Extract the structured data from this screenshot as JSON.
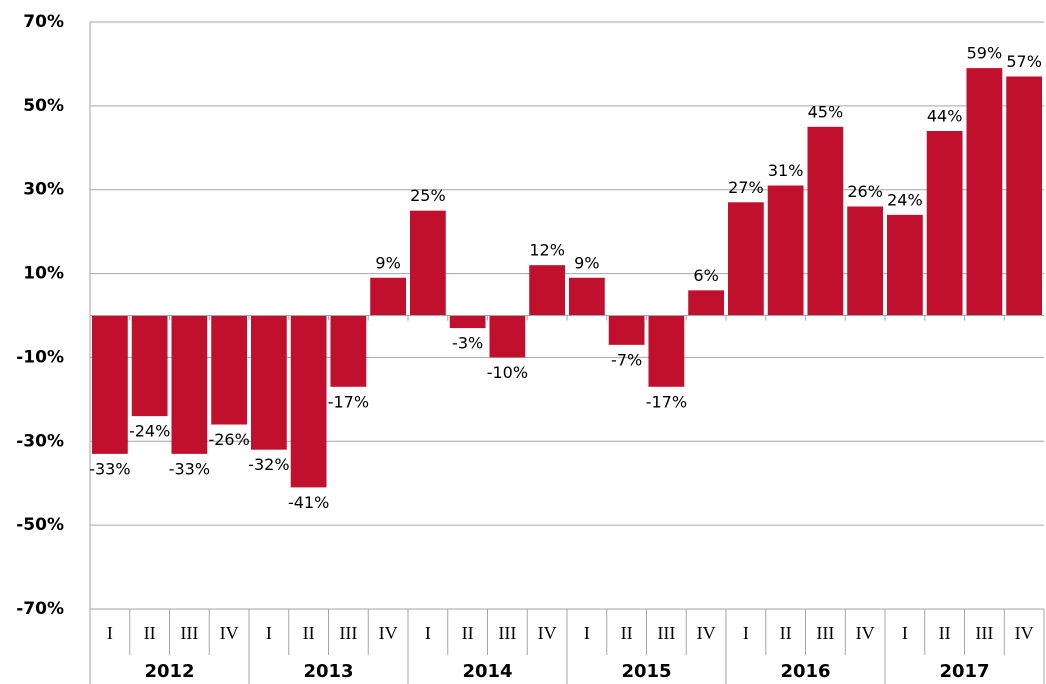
{
  "chart_data": {
    "type": "bar",
    "categories": [
      "I",
      "II",
      "III",
      "IV",
      "I",
      "II",
      "III",
      "IV",
      "I",
      "II",
      "III",
      "IV",
      "I",
      "II",
      "III",
      "IV",
      "I",
      "II",
      "III",
      "IV",
      "I",
      "II",
      "III",
      "IV"
    ],
    "years": [
      "2012",
      "2013",
      "2014",
      "2015",
      "2016",
      "2017"
    ],
    "values": [
      -33,
      -24,
      -33,
      -26,
      -32,
      -41,
      -17,
      9,
      25,
      -3,
      -10,
      12,
      9,
      -7,
      -17,
      6,
      27,
      31,
      45,
      26,
      24,
      44,
      59,
      57
    ],
    "value_labels": [
      "-33%",
      "-24%",
      "-33%",
      "-26%",
      "-32%",
      "-41%",
      "-17%",
      "9%",
      "25%",
      "-3%",
      "-10%",
      "12%",
      "9%",
      "-7%",
      "-17%",
      "6%",
      "27%",
      "31%",
      "45%",
      "26%",
      "24%",
      "44%",
      "59%",
      "57%"
    ],
    "color": "#c0102e",
    "ylim": [
      -70,
      70
    ],
    "yticks": [
      {
        "value": -70,
        "label": "-70%"
      },
      {
        "value": -50,
        "label": "-50%"
      },
      {
        "value": -30,
        "label": "-30%"
      },
      {
        "value": -10,
        "label": "-10%"
      },
      {
        "value": 10,
        "label": "10%"
      },
      {
        "value": 30,
        "label": "30%"
      },
      {
        "value": 50,
        "label": "50%"
      },
      {
        "value": 70,
        "label": "70%"
      }
    ],
    "grid": true
  }
}
